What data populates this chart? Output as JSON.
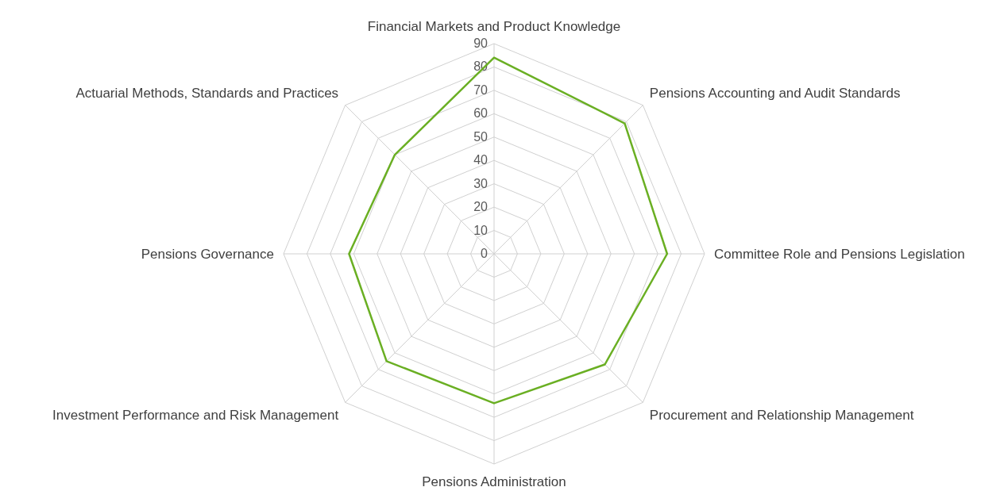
{
  "chart_data": {
    "type": "radar",
    "categories": [
      "Financial Markets and Product Knowledge",
      "Pensions Accounting and Audit Standards",
      "Committee Role and Pensions Legislation",
      "Procurement and Relationship Management",
      "Pensions Administration",
      "Investment Performance and Risk Management",
      "Pensions Governance",
      "Actuarial Methods, Standards and Practices"
    ],
    "series": [
      {
        "color": "#6aaf23",
        "values": [
          84,
          79,
          74,
          67,
          64,
          65,
          62,
          60
        ]
      }
    ],
    "ylim": [
      0,
      90
    ],
    "yticks": [
      0,
      10,
      20,
      30,
      40,
      50,
      60,
      70,
      80,
      90
    ],
    "grid": true
  }
}
